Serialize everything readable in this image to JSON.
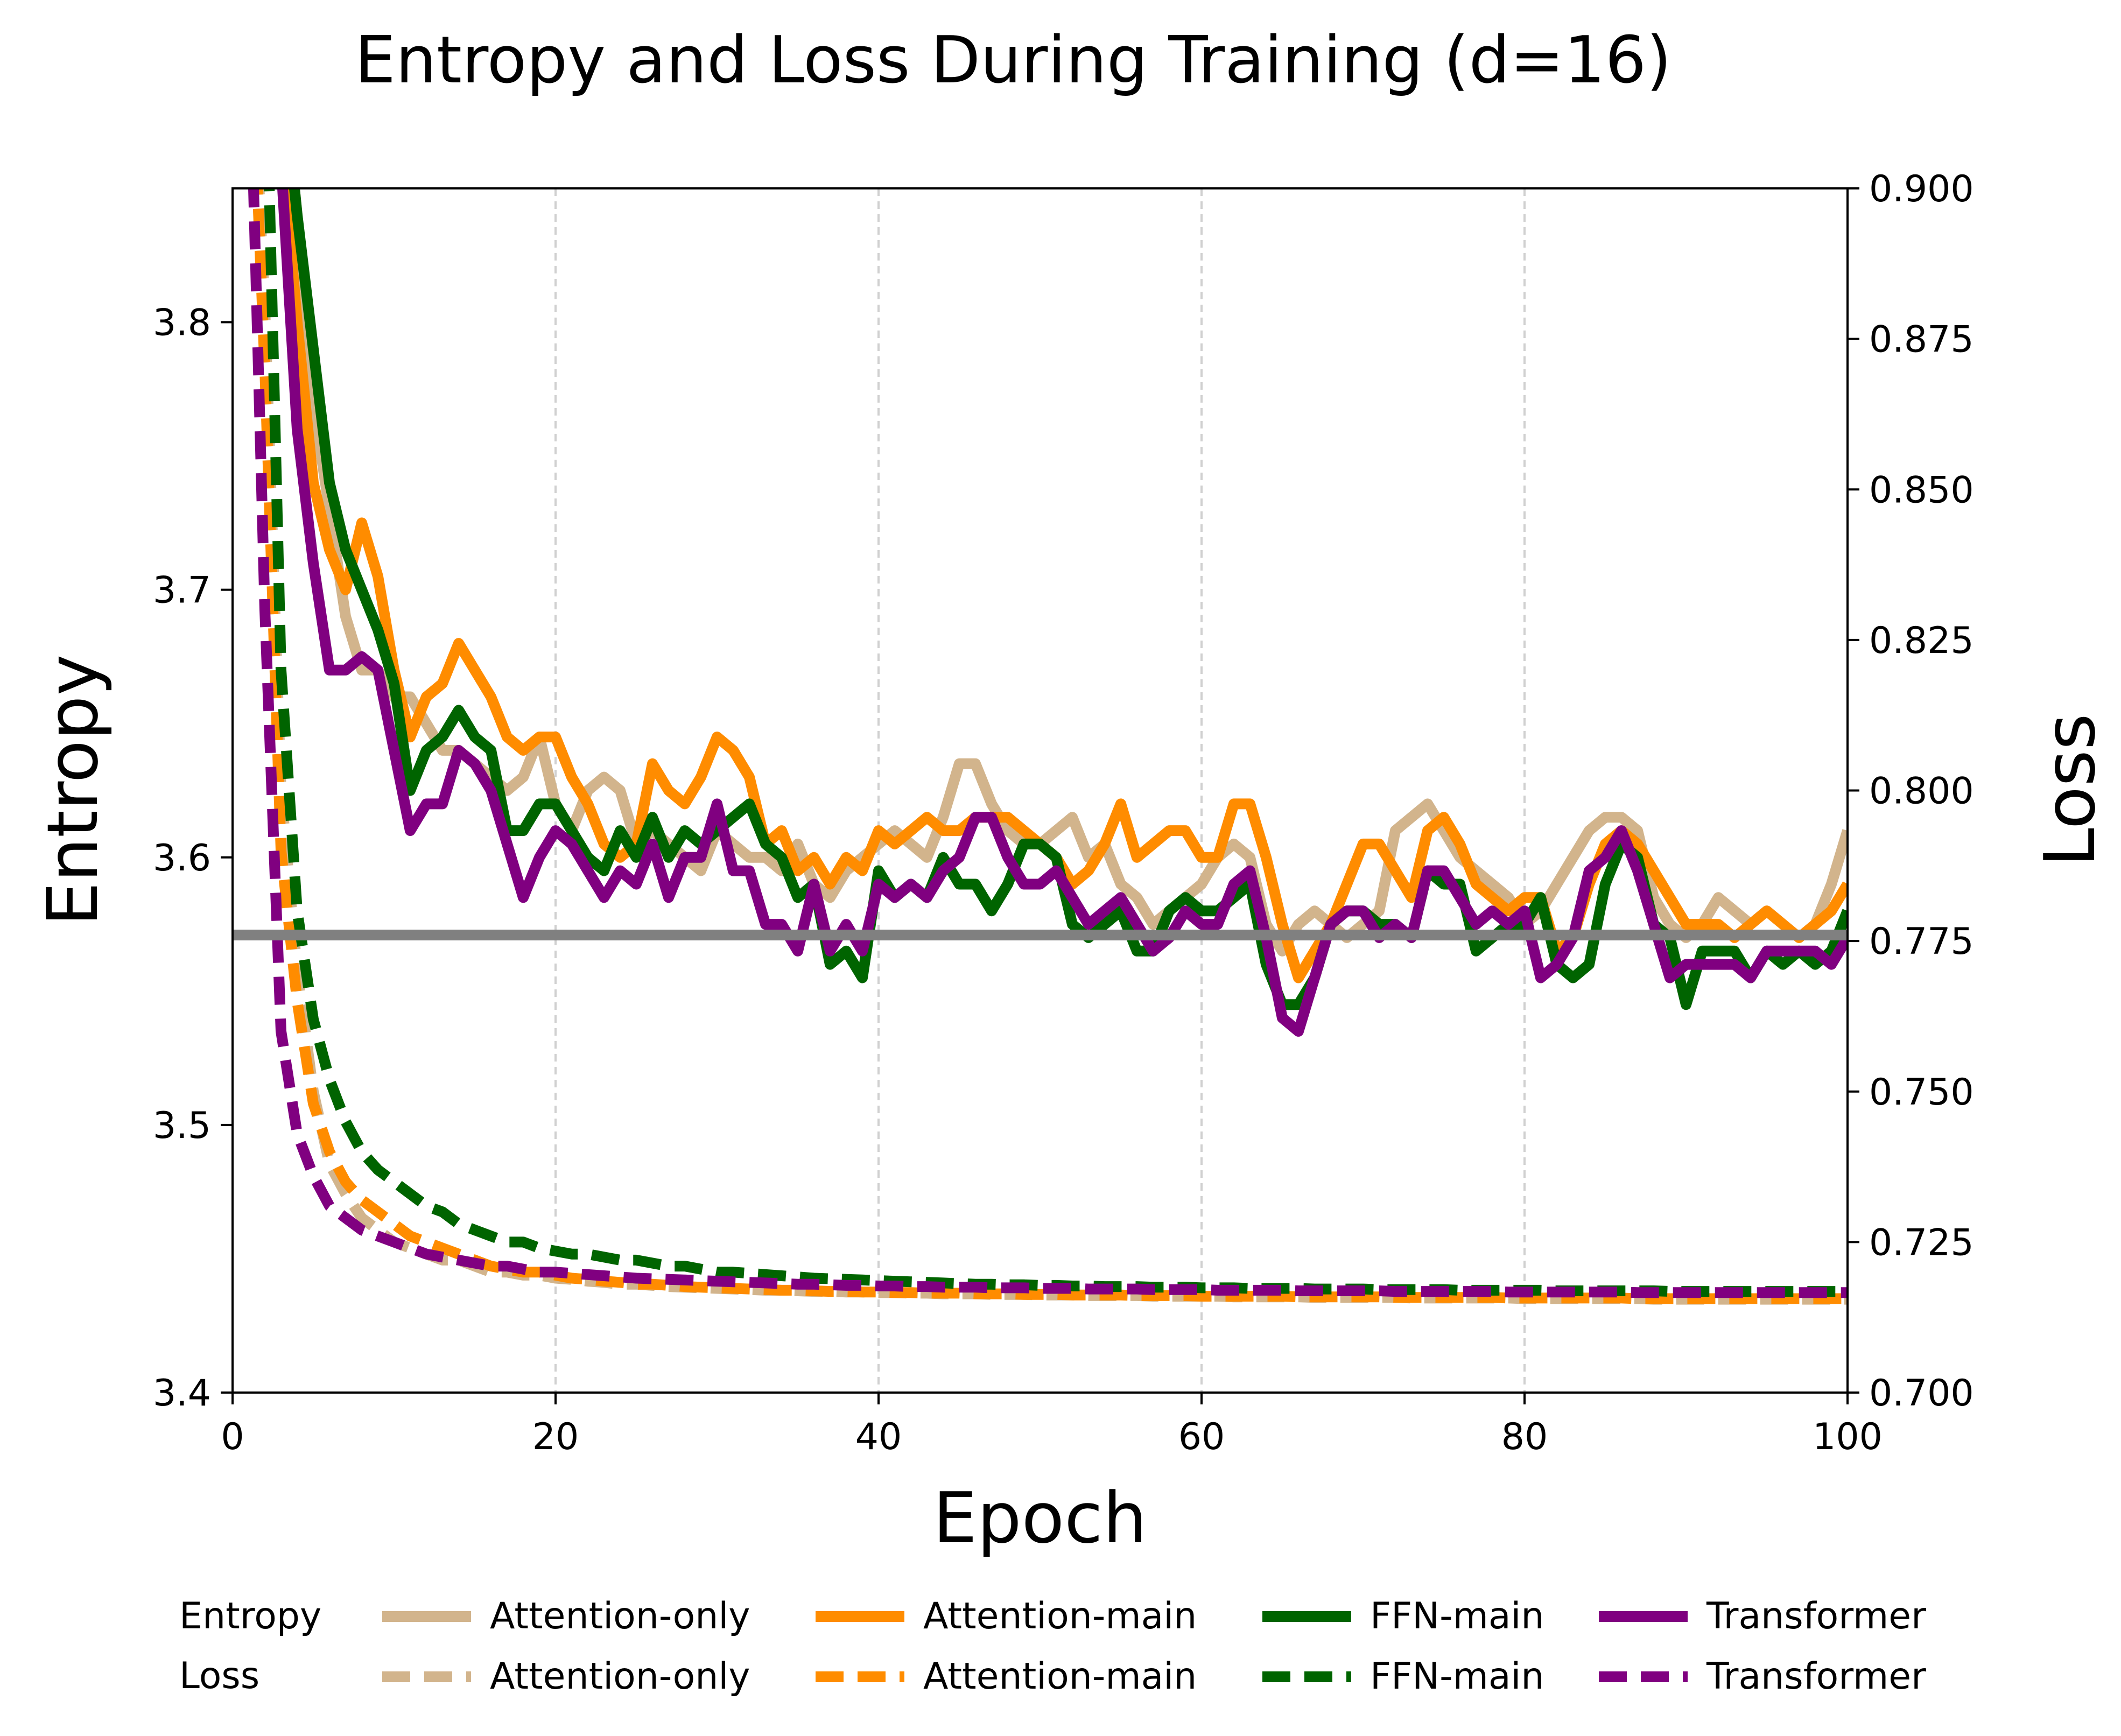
{
  "chart_data": {
    "type": "line",
    "title": "Entropy and Loss During Training (d=16)",
    "xlabel": "Epoch",
    "ylabel_left": "Entropy",
    "ylabel_right": "Loss",
    "xlim": [
      0,
      100
    ],
    "ylim_left": [
      3.4,
      3.85
    ],
    "ylim_right": [
      0.7,
      0.9
    ],
    "x_ticks": [
      "0",
      "20",
      "40",
      "60",
      "80",
      "100"
    ],
    "y_left_ticks": [
      "3.4",
      "3.5",
      "3.6",
      "3.7",
      "3.8"
    ],
    "y_right_ticks": [
      "0.700",
      "0.725",
      "0.750",
      "0.775",
      "0.800",
      "0.825",
      "0.850",
      "0.875",
      "0.900"
    ],
    "grid": "vertical dashed lines at x ticks",
    "legend_placement": "below plot",
    "legend_row_labels": [
      "Entropy",
      "Loss"
    ],
    "reference_line": {
      "axis": "left",
      "y": 3.571,
      "color": "#808080"
    },
    "entropy_series": [
      {
        "name": "Attention-only",
        "color": "#d2b48c",
        "values": [
          4.5,
          4.2,
          4.0,
          3.9,
          3.84,
          3.77,
          3.73,
          3.69,
          3.67,
          3.67,
          3.66,
          3.66,
          3.65,
          3.64,
          3.64,
          3.635,
          3.63,
          3.625,
          3.63,
          3.645,
          3.62,
          3.61,
          3.625,
          3.63,
          3.625,
          3.605,
          3.61,
          3.605,
          3.6,
          3.595,
          3.61,
          3.605,
          3.6,
          3.6,
          3.595,
          3.605,
          3.59,
          3.585,
          3.595,
          3.6,
          3.605,
          3.61,
          3.605,
          3.6,
          3.615,
          3.635,
          3.635,
          3.62,
          3.61,
          3.605,
          3.605,
          3.61,
          3.615,
          3.6,
          3.605,
          3.59,
          3.585,
          3.575,
          3.58,
          3.585,
          3.59,
          3.6,
          3.605,
          3.6,
          3.575,
          3.565,
          3.575,
          3.58,
          3.575,
          3.57,
          3.575,
          3.58,
          3.61,
          3.615,
          3.62,
          3.61,
          3.6,
          3.595,
          3.59,
          3.585,
          3.575,
          3.58,
          3.59,
          3.6,
          3.61,
          3.615,
          3.615,
          3.61,
          3.585,
          3.575,
          3.57,
          3.575,
          3.585,
          3.58,
          3.575,
          3.58,
          3.575,
          3.57,
          3.575,
          3.59,
          3.61
        ]
      },
      {
        "name": "Attention-main",
        "color": "#ff8c00",
        "values": [
          4.5,
          4.2,
          4.0,
          3.87,
          3.8,
          3.74,
          3.715,
          3.7,
          3.725,
          3.705,
          3.67,
          3.645,
          3.66,
          3.665,
          3.68,
          3.67,
          3.66,
          3.645,
          3.64,
          3.645,
          3.645,
          3.63,
          3.62,
          3.605,
          3.6,
          3.605,
          3.635,
          3.625,
          3.62,
          3.63,
          3.645,
          3.64,
          3.63,
          3.605,
          3.61,
          3.595,
          3.6,
          3.59,
          3.6,
          3.595,
          3.61,
          3.605,
          3.61,
          3.615,
          3.61,
          3.61,
          3.615,
          3.615,
          3.615,
          3.61,
          3.605,
          3.6,
          3.59,
          3.595,
          3.605,
          3.62,
          3.6,
          3.605,
          3.61,
          3.61,
          3.6,
          3.6,
          3.62,
          3.62,
          3.6,
          3.575,
          3.555,
          3.565,
          3.575,
          3.59,
          3.605,
          3.605,
          3.595,
          3.585,
          3.61,
          3.615,
          3.605,
          3.59,
          3.585,
          3.58,
          3.585,
          3.585,
          3.565,
          3.57,
          3.59,
          3.605,
          3.61,
          3.605,
          3.595,
          3.585,
          3.575,
          3.575,
          3.575,
          3.57,
          3.575,
          3.58,
          3.575,
          3.57,
          3.575,
          3.58,
          3.59
        ]
      },
      {
        "name": "FFN-main",
        "color": "#006400",
        "values": [
          4.5,
          4.2,
          4.0,
          3.9,
          3.84,
          3.79,
          3.74,
          3.715,
          3.7,
          3.685,
          3.665,
          3.625,
          3.64,
          3.645,
          3.655,
          3.645,
          3.64,
          3.61,
          3.61,
          3.62,
          3.62,
          3.61,
          3.6,
          3.595,
          3.61,
          3.6,
          3.615,
          3.6,
          3.61,
          3.605,
          3.61,
          3.615,
          3.62,
          3.605,
          3.6,
          3.585,
          3.59,
          3.56,
          3.565,
          3.555,
          3.595,
          3.585,
          3.59,
          3.585,
          3.6,
          3.59,
          3.59,
          3.58,
          3.59,
          3.605,
          3.605,
          3.6,
          3.575,
          3.57,
          3.575,
          3.58,
          3.565,
          3.565,
          3.58,
          3.585,
          3.58,
          3.58,
          3.585,
          3.59,
          3.56,
          3.545,
          3.545,
          3.555,
          3.575,
          3.58,
          3.58,
          3.575,
          3.575,
          3.57,
          3.595,
          3.59,
          3.59,
          3.565,
          3.57,
          3.575,
          3.575,
          3.585,
          3.56,
          3.555,
          3.56,
          3.59,
          3.605,
          3.6,
          3.575,
          3.57,
          3.545,
          3.565,
          3.565,
          3.565,
          3.555,
          3.565,
          3.56,
          3.565,
          3.56,
          3.565,
          3.58
        ]
      },
      {
        "name": "Transformer",
        "color": "#800080",
        "values": [
          4.5,
          4.15,
          3.98,
          3.86,
          3.76,
          3.71,
          3.67,
          3.67,
          3.675,
          3.67,
          3.64,
          3.61,
          3.62,
          3.62,
          3.64,
          3.635,
          3.625,
          3.605,
          3.585,
          3.6,
          3.61,
          3.605,
          3.595,
          3.585,
          3.595,
          3.59,
          3.605,
          3.585,
          3.6,
          3.6,
          3.62,
          3.595,
          3.595,
          3.575,
          3.575,
          3.565,
          3.59,
          3.565,
          3.575,
          3.565,
          3.59,
          3.585,
          3.59,
          3.585,
          3.595,
          3.6,
          3.615,
          3.615,
          3.6,
          3.59,
          3.59,
          3.595,
          3.585,
          3.575,
          3.58,
          3.585,
          3.575,
          3.565,
          3.57,
          3.58,
          3.575,
          3.575,
          3.59,
          3.595,
          3.57,
          3.54,
          3.535,
          3.555,
          3.575,
          3.58,
          3.58,
          3.57,
          3.575,
          3.57,
          3.595,
          3.595,
          3.585,
          3.575,
          3.58,
          3.575,
          3.58,
          3.555,
          3.56,
          3.57,
          3.595,
          3.6,
          3.61,
          3.595,
          3.575,
          3.555,
          3.56,
          3.56,
          3.56,
          3.56,
          3.555,
          3.565,
          3.565,
          3.565,
          3.565,
          3.56,
          3.57
        ]
      }
    ],
    "loss_series": [
      {
        "name": "Attention-only",
        "color": "#d2b48c",
        "values": [
          1.2,
          0.95,
          0.88,
          0.8,
          0.77,
          0.75,
          0.738,
          0.733,
          0.729,
          0.727,
          0.725,
          0.724,
          0.723,
          0.722,
          0.722,
          0.721,
          0.72,
          0.72,
          0.7195,
          0.7195,
          0.719,
          0.7188,
          0.7185,
          0.7183,
          0.718,
          0.718,
          0.7178,
          0.7176,
          0.7175,
          0.7174,
          0.7173,
          0.7172,
          0.7171,
          0.717,
          0.717,
          0.7169,
          0.7168,
          0.7168,
          0.7167,
          0.7167,
          0.7166,
          0.7166,
          0.7165,
          0.7165,
          0.7164,
          0.7164,
          0.7164,
          0.7163,
          0.7163,
          0.7163,
          0.7162,
          0.7162,
          0.7162,
          0.7161,
          0.7161,
          0.7161,
          0.7161,
          0.716,
          0.716,
          0.716,
          0.716,
          0.716,
          0.7159,
          0.7159,
          0.7159,
          0.7159,
          0.7159,
          0.7158,
          0.7158,
          0.7158,
          0.7158,
          0.7158,
          0.7158,
          0.7157,
          0.7157,
          0.7157,
          0.7157,
          0.7157,
          0.7157,
          0.7157,
          0.7156,
          0.7156,
          0.7156,
          0.7156,
          0.7156,
          0.7156,
          0.7156,
          0.7156,
          0.7155,
          0.7155,
          0.7155,
          0.7155,
          0.7155,
          0.7155,
          0.7155,
          0.7155,
          0.7155,
          0.7155,
          0.7155,
          0.7155,
          0.7155
        ]
      },
      {
        "name": "Attention-main",
        "color": "#ff8c00",
        "values": [
          1.2,
          0.95,
          0.87,
          0.79,
          0.765,
          0.748,
          0.74,
          0.735,
          0.732,
          0.73,
          0.728,
          0.726,
          0.725,
          0.724,
          0.723,
          0.722,
          0.721,
          0.7205,
          0.72,
          0.72,
          0.7195,
          0.719,
          0.7188,
          0.7185,
          0.7183,
          0.718,
          0.718,
          0.7178,
          0.7176,
          0.7175,
          0.7174,
          0.7173,
          0.7172,
          0.7171,
          0.717,
          0.717,
          0.7169,
          0.7168,
          0.7168,
          0.7167,
          0.7167,
          0.7166,
          0.7166,
          0.7165,
          0.7165,
          0.7165,
          0.7164,
          0.7164,
          0.7164,
          0.7163,
          0.7163,
          0.7163,
          0.7162,
          0.7162,
          0.7162,
          0.7162,
          0.7161,
          0.7161,
          0.7161,
          0.7161,
          0.716,
          0.716,
          0.716,
          0.716,
          0.716,
          0.716,
          0.7159,
          0.7159,
          0.7159,
          0.7159,
          0.7159,
          0.7159,
          0.7158,
          0.7158,
          0.7158,
          0.7158,
          0.7158,
          0.7158,
          0.7158,
          0.7157,
          0.7157,
          0.7157,
          0.7157,
          0.7157,
          0.7157,
          0.7157,
          0.7157,
          0.7156,
          0.7156,
          0.7156,
          0.7156,
          0.7156,
          0.7156,
          0.7156,
          0.7156,
          0.7156,
          0.7156,
          0.7156,
          0.7156,
          0.7156,
          0.7156
        ]
      },
      {
        "name": "FFN-main",
        "color": "#006400",
        "values": [
          1.2,
          1.0,
          0.93,
          0.82,
          0.78,
          0.762,
          0.752,
          0.745,
          0.74,
          0.737,
          0.735,
          0.733,
          0.731,
          0.73,
          0.728,
          0.727,
          0.726,
          0.725,
          0.725,
          0.724,
          0.7235,
          0.723,
          0.723,
          0.7225,
          0.722,
          0.722,
          0.7215,
          0.721,
          0.721,
          0.7205,
          0.72,
          0.72,
          0.7198,
          0.7196,
          0.7194,
          0.7192,
          0.719,
          0.7189,
          0.7188,
          0.7187,
          0.7186,
          0.7185,
          0.7184,
          0.7183,
          0.7182,
          0.7181,
          0.718,
          0.718,
          0.7179,
          0.7179,
          0.7178,
          0.7178,
          0.7177,
          0.7177,
          0.7176,
          0.7176,
          0.7176,
          0.7175,
          0.7175,
          0.7175,
          0.7174,
          0.7174,
          0.7174,
          0.7173,
          0.7173,
          0.7173,
          0.7173,
          0.7172,
          0.7172,
          0.7172,
          0.7172,
          0.7171,
          0.7171,
          0.7171,
          0.7171,
          0.7171,
          0.717,
          0.717,
          0.717,
          0.717,
          0.717,
          0.717,
          0.7169,
          0.7169,
          0.7169,
          0.7169,
          0.7169,
          0.7169,
          0.7169,
          0.7168,
          0.7168,
          0.7168,
          0.7168,
          0.7168,
          0.7168,
          0.7168,
          0.7168,
          0.7168,
          0.7168,
          0.7168,
          0.7168
        ]
      },
      {
        "name": "Transformer",
        "color": "#800080",
        "values": [
          1.2,
          0.93,
          0.83,
          0.76,
          0.743,
          0.736,
          0.731,
          0.729,
          0.727,
          0.726,
          0.725,
          0.724,
          0.723,
          0.7225,
          0.722,
          0.7215,
          0.721,
          0.721,
          0.7205,
          0.72,
          0.72,
          0.7198,
          0.7196,
          0.7194,
          0.7192,
          0.719,
          0.7189,
          0.7188,
          0.7187,
          0.7186,
          0.7185,
          0.7184,
          0.7183,
          0.7182,
          0.7181,
          0.718,
          0.718,
          0.7179,
          0.7178,
          0.7178,
          0.7177,
          0.7177,
          0.7176,
          0.7176,
          0.7175,
          0.7175,
          0.7175,
          0.7174,
          0.7174,
          0.7174,
          0.7173,
          0.7173,
          0.7173,
          0.7172,
          0.7172,
          0.7172,
          0.7172,
          0.7171,
          0.7171,
          0.7171,
          0.7171,
          0.717,
          0.717,
          0.717,
          0.717,
          0.717,
          0.7169,
          0.7169,
          0.7169,
          0.7169,
          0.7169,
          0.7169,
          0.7168,
          0.7168,
          0.7168,
          0.7168,
          0.7168,
          0.7168,
          0.7168,
          0.7167,
          0.7167,
          0.7167,
          0.7167,
          0.7167,
          0.7167,
          0.7167,
          0.7167,
          0.7166,
          0.7166,
          0.7166,
          0.7166,
          0.7166,
          0.7166,
          0.7166,
          0.7166,
          0.7166,
          0.7166,
          0.7166,
          0.7166,
          0.7166,
          0.7166
        ]
      }
    ]
  }
}
